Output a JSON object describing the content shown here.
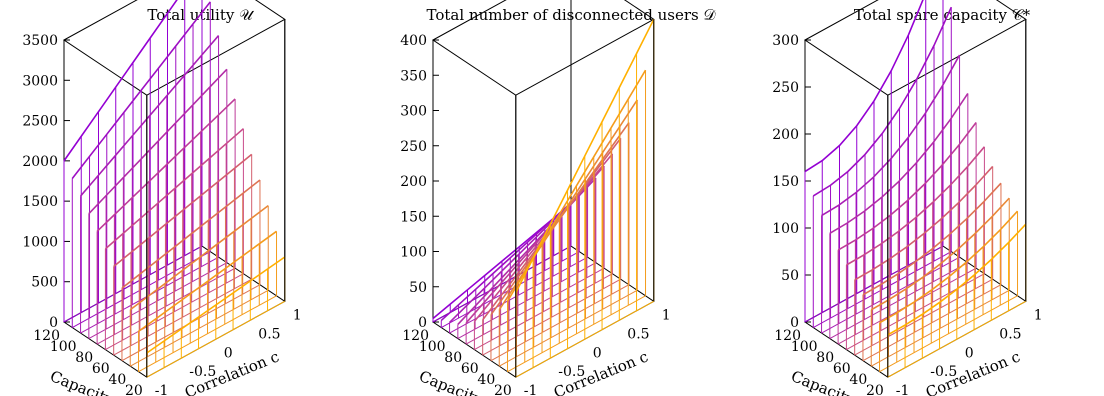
{
  "chart_data": [
    {
      "type": "3d-surface-lines",
      "title": "Total utility 𝒰",
      "xlabel": "Capacity C",
      "ylabel": "Correlation c",
      "zlim": [
        0,
        3500
      ],
      "ztick_labels": [
        "0",
        "500",
        "1000",
        "1500",
        "2000",
        "2500",
        "3000",
        "3500"
      ],
      "capacity_tick_labels": [
        "120",
        "100",
        "80",
        "60",
        "40",
        "20"
      ],
      "correlation_tick_labels": [
        "-1",
        "-0.5",
        "0",
        "0.5",
        "1"
      ],
      "capacity_values": [
        120,
        110,
        100,
        90,
        80,
        70,
        60,
        50,
        40,
        30,
        20
      ],
      "correlation_range": [
        -1,
        1
      ],
      "curves": [
        {
          "C": 120,
          "z_at_c_min": 2000,
          "z_at_c_max": 3500
        },
        {
          "C": 110,
          "z_at_c_min": 1850,
          "z_at_c_max": 3100
        },
        {
          "C": 100,
          "z_at_c_min": 1700,
          "z_at_c_max": 2750
        },
        {
          "C": 90,
          "z_at_c_min": 1550,
          "z_at_c_max": 2400
        },
        {
          "C": 80,
          "z_at_c_min": 1400,
          "z_at_c_max": 2100
        },
        {
          "C": 70,
          "z_at_c_min": 1250,
          "z_at_c_max": 1800
        },
        {
          "C": 60,
          "z_at_c_min": 1100,
          "z_at_c_max": 1550
        },
        {
          "C": 50,
          "z_at_c_min": 900,
          "z_at_c_max": 1300
        },
        {
          "C": 40,
          "z_at_c_min": 700,
          "z_at_c_max": 1050
        },
        {
          "C": 30,
          "z_at_c_min": 500,
          "z_at_c_max": 800
        },
        {
          "C": 20,
          "z_at_c_min": 300,
          "z_at_c_max": 550
        }
      ]
    },
    {
      "type": "3d-surface-lines",
      "title": "Total number of disconnected users 𝒟",
      "xlabel": "Capacity C",
      "ylabel": "Correlation c",
      "zlim": [
        0,
        400
      ],
      "ztick_labels": [
        "0",
        "50",
        "100",
        "150",
        "200",
        "250",
        "300",
        "350",
        "400"
      ],
      "capacity_tick_labels": [
        "120",
        "100",
        "80",
        "60",
        "40",
        "20"
      ],
      "correlation_tick_labels": [
        "-1",
        "-0.5",
        "0",
        "0.5",
        "1"
      ],
      "capacity_values": [
        120,
        110,
        100,
        90,
        80,
        70,
        60,
        50,
        40,
        30,
        20
      ],
      "correlation_range": [
        -1,
        1
      ],
      "curves": [
        {
          "C": 120,
          "z_at_c_min": 5,
          "z_at_c_max": 60
        },
        {
          "C": 110,
          "z_at_c_min": 10,
          "z_at_c_max": 80
        },
        {
          "C": 100,
          "z_at_c_min": 15,
          "z_at_c_max": 100
        },
        {
          "C": 90,
          "z_at_c_min": 20,
          "z_at_c_max": 120
        },
        {
          "C": 80,
          "z_at_c_min": 30,
          "z_at_c_max": 145
        },
        {
          "C": 70,
          "z_at_c_min": 40,
          "z_at_c_max": 170
        },
        {
          "C": 60,
          "z_at_c_min": 50,
          "z_at_c_max": 200
        },
        {
          "C": 50,
          "z_at_c_min": 65,
          "z_at_c_max": 230
        },
        {
          "C": 40,
          "z_at_c_min": 80,
          "z_at_c_max": 270
        },
        {
          "C": 30,
          "z_at_c_min": 100,
          "z_at_c_max": 320
        },
        {
          "C": 20,
          "z_at_c_min": 120,
          "z_at_c_max": 400
        }
      ]
    },
    {
      "type": "3d-surface-lines",
      "title": "Total spare capacity 𝒞*",
      "xlabel": "Capacity C",
      "ylabel": "Correlation c",
      "zlim": [
        0,
        300
      ],
      "ztick_labels": [
        "0",
        "50",
        "100",
        "150",
        "200",
        "250",
        "300"
      ],
      "capacity_tick_labels": [
        "120",
        "100",
        "80",
        "60",
        "40",
        "20"
      ],
      "correlation_tick_labels": [
        "-1",
        "-0.5",
        "0",
        "0.5",
        "1"
      ],
      "capacity_values": [
        120,
        110,
        100,
        90,
        80,
        70,
        60,
        50,
        40,
        30,
        20
      ],
      "correlation_range": [
        -1,
        1
      ],
      "curves": [
        {
          "C": 120,
          "z_at_c_min": 160,
          "z_at_c_max": 320
        },
        {
          "C": 110,
          "z_at_c_min": 140,
          "z_at_c_max": 260
        },
        {
          "C": 100,
          "z_at_c_min": 125,
          "z_at_c_max": 215
        },
        {
          "C": 90,
          "z_at_c_min": 112,
          "z_at_c_max": 180
        },
        {
          "C": 80,
          "z_at_c_min": 100,
          "z_at_c_max": 155
        },
        {
          "C": 70,
          "z_at_c_min": 90,
          "z_at_c_max": 135
        },
        {
          "C": 60,
          "z_at_c_min": 80,
          "z_at_c_max": 120
        },
        {
          "C": 50,
          "z_at_c_min": 70,
          "z_at_c_max": 108
        },
        {
          "C": 40,
          "z_at_c_min": 60,
          "z_at_c_max": 98
        },
        {
          "C": 30,
          "z_at_c_min": 52,
          "z_at_c_max": 90
        },
        {
          "C": 20,
          "z_at_c_min": 45,
          "z_at_c_max": 82
        }
      ]
    }
  ],
  "palette": {
    "start": "#9400d3",
    "mid": "#c84b8a",
    "end": "#ffb000"
  }
}
